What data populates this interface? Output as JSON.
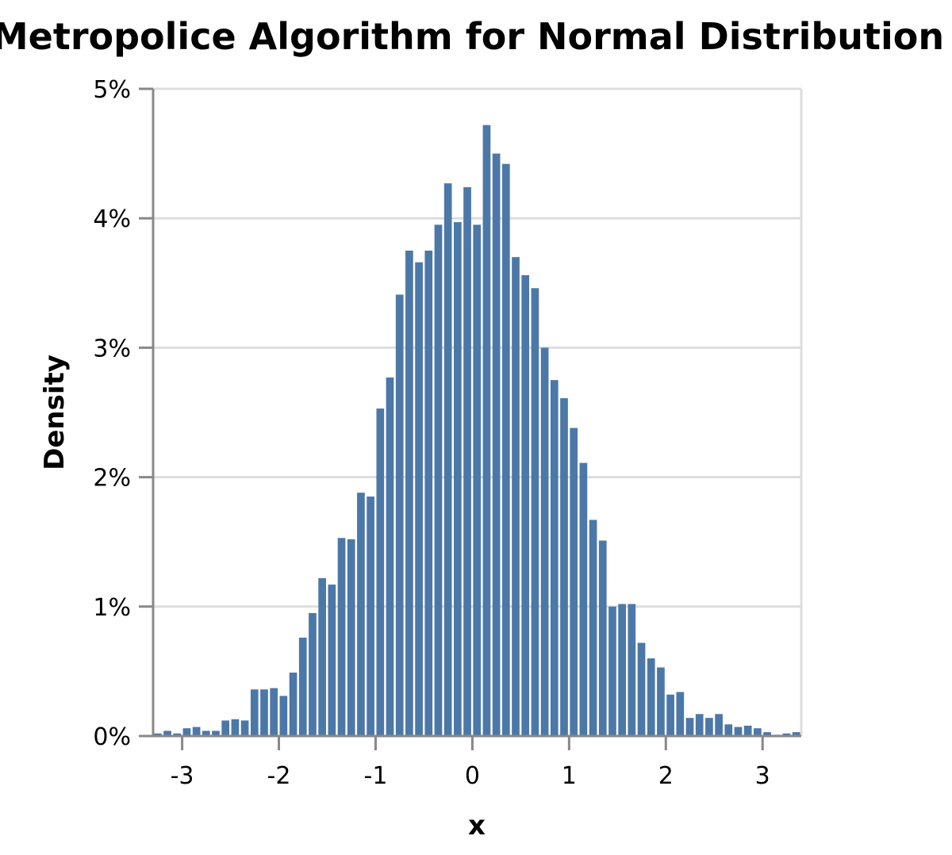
{
  "chart_data": {
    "type": "bar",
    "title": "Metropolice Algorithm for Normal Distribution",
    "xlabel": "x",
    "ylabel": "Density",
    "xlim": [
      -3.3,
      3.4
    ],
    "ylim": [
      0,
      0.05
    ],
    "x_ticks": [
      "-3",
      "-2",
      "-1",
      "0",
      "1",
      "2",
      "3"
    ],
    "y_ticks": [
      "0%",
      "1%",
      "2%",
      "3%",
      "4%",
      "5%"
    ],
    "grid": true,
    "bar_color": "#4c78a8",
    "bin_width": 0.1,
    "bin_start": -3.3,
    "values": [
      0.0002,
      0.0004,
      0.0002,
      0.0006,
      0.0007,
      0.0004,
      0.0004,
      0.0012,
      0.0013,
      0.0012,
      0.0036,
      0.0036,
      0.0037,
      0.0031,
      0.0049,
      0.0076,
      0.0095,
      0.0122,
      0.0117,
      0.0153,
      0.0152,
      0.0188,
      0.0185,
      0.0253,
      0.0277,
      0.0341,
      0.0375,
      0.0366,
      0.0375,
      0.0395,
      0.0427,
      0.0397,
      0.0424,
      0.0395,
      0.0472,
      0.045,
      0.0442,
      0.037,
      0.0356,
      0.0346,
      0.03,
      0.0275,
      0.0261,
      0.0238,
      0.0211,
      0.0167,
      0.0151,
      0.01,
      0.0102,
      0.0102,
      0.0072,
      0.006,
      0.0053,
      0.0032,
      0.0034,
      0.0014,
      0.0017,
      0.0014,
      0.0017,
      0.0009,
      0.0007,
      0.0008,
      0.0006,
      0.0003,
      0.0001,
      0.0002,
      0.0003
    ]
  }
}
